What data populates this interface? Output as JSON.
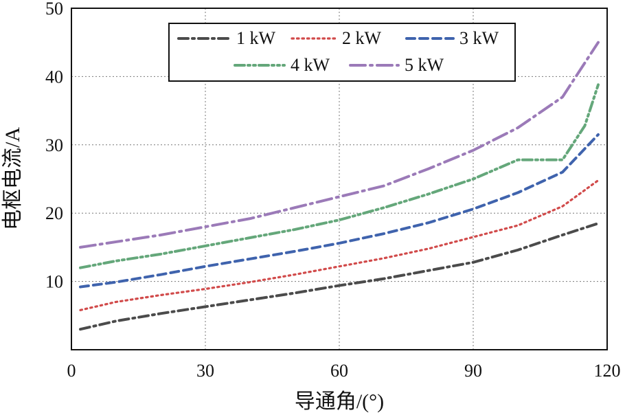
{
  "chart_data": {
    "type": "line",
    "xlabel": "导通角/(°)",
    "ylabel": "电枢电流/A",
    "xlim": [
      0,
      120
    ],
    "ylim": [
      0,
      50
    ],
    "xticks": [
      0,
      30,
      60,
      90,
      120
    ],
    "yticks": [
      10,
      20,
      30,
      40,
      50
    ],
    "grid": true,
    "legend_position": "top",
    "series": [
      {
        "name": "1 kW",
        "color": "#4b4b4b",
        "style": "dashdot",
        "points": [
          [
            2,
            3.0
          ],
          [
            10,
            4.2
          ],
          [
            20,
            5.3
          ],
          [
            30,
            6.3
          ],
          [
            40,
            7.3
          ],
          [
            50,
            8.3
          ],
          [
            60,
            9.4
          ],
          [
            70,
            10.4
          ],
          [
            80,
            11.6
          ],
          [
            90,
            12.8
          ],
          [
            100,
            14.6
          ],
          [
            110,
            16.8
          ],
          [
            118,
            18.5
          ]
        ]
      },
      {
        "name": "2 kW",
        "color": "#d14a4a",
        "style": "dotted",
        "points": [
          [
            2,
            5.8
          ],
          [
            10,
            7.0
          ],
          [
            20,
            8.0
          ],
          [
            30,
            8.9
          ],
          [
            40,
            9.9
          ],
          [
            50,
            11.0
          ],
          [
            60,
            12.2
          ],
          [
            70,
            13.4
          ],
          [
            80,
            14.8
          ],
          [
            90,
            16.5
          ],
          [
            100,
            18.2
          ],
          [
            110,
            21.0
          ],
          [
            118,
            24.8
          ]
        ]
      },
      {
        "name": "3 kW",
        "color": "#3f63ad",
        "style": "dashed",
        "points": [
          [
            2,
            9.2
          ],
          [
            10,
            9.9
          ],
          [
            20,
            11.0
          ],
          [
            30,
            12.2
          ],
          [
            40,
            13.3
          ],
          [
            50,
            14.4
          ],
          [
            60,
            15.6
          ],
          [
            70,
            17.0
          ],
          [
            80,
            18.6
          ],
          [
            90,
            20.6
          ],
          [
            100,
            23.0
          ],
          [
            110,
            26.0
          ],
          [
            118,
            31.5
          ]
        ]
      },
      {
        "name": "4 kW",
        "color": "#64a77a",
        "style": "dashdotdot",
        "points": [
          [
            2,
            12.0
          ],
          [
            10,
            13.0
          ],
          [
            20,
            14.0
          ],
          [
            30,
            15.2
          ],
          [
            40,
            16.4
          ],
          [
            50,
            17.6
          ],
          [
            60,
            19.0
          ],
          [
            70,
            20.8
          ],
          [
            80,
            22.8
          ],
          [
            90,
            25.0
          ],
          [
            100,
            27.8
          ],
          [
            110,
            27.8
          ],
          [
            115,
            32.8
          ],
          [
            118,
            38.8
          ]
        ]
      },
      {
        "name": "5 kW",
        "color": "#9b7ab8",
        "style": "longdashdot",
        "points": [
          [
            2,
            15.0
          ],
          [
            10,
            15.8
          ],
          [
            20,
            16.8
          ],
          [
            30,
            18.0
          ],
          [
            40,
            19.2
          ],
          [
            50,
            20.8
          ],
          [
            60,
            22.4
          ],
          [
            70,
            24.0
          ],
          [
            80,
            26.5
          ],
          [
            90,
            29.2
          ],
          [
            100,
            32.5
          ],
          [
            110,
            37.0
          ],
          [
            118,
            45.0
          ]
        ]
      }
    ]
  }
}
